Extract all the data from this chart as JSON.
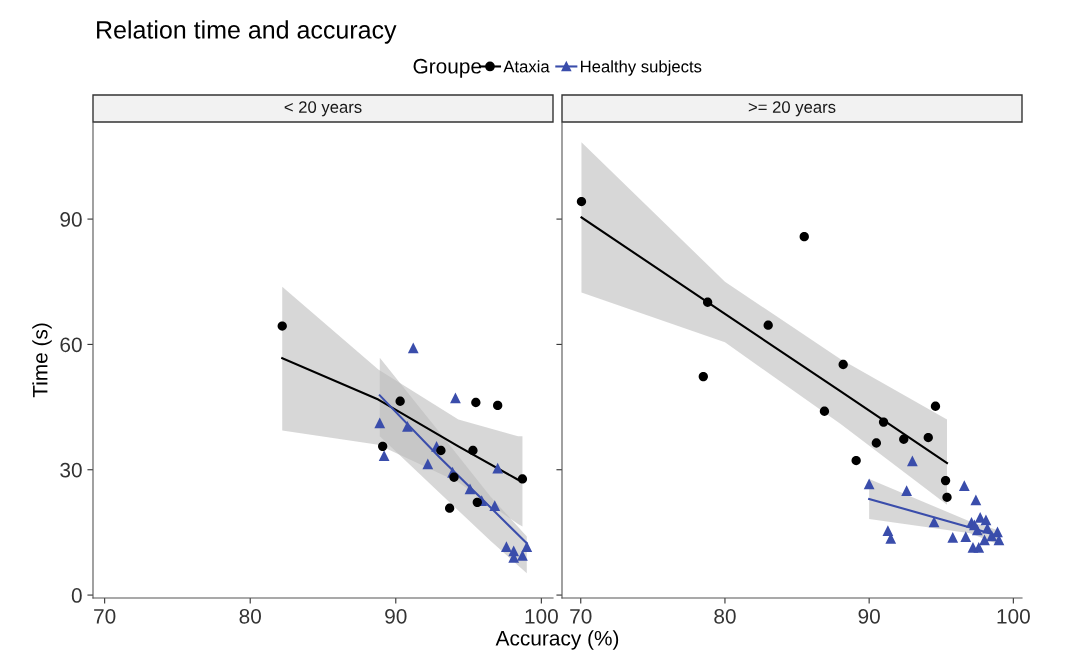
{
  "chart_data": [
    {
      "type": "scatter",
      "title": "Relation time and accuracy",
      "subtitle": "< 20 years",
      "xlabel": "Accuracy (%)",
      "ylabel": "Time (s)",
      "legend_title": "Groupe",
      "legend": "top",
      "grid": false,
      "xlim": [
        69.2,
        100.8
      ],
      "xticks": [
        70,
        80,
        90,
        100
      ],
      "ylim": [
        -0.7,
        113
      ],
      "yticks": [
        0,
        30,
        60,
        90
      ],
      "series": [
        {
          "name": "Ataxia",
          "color": "#000000",
          "marker": "circle",
          "x": [
            82.2,
            90.3,
            89.1,
            93.1,
            95.3,
            95.5,
            97.0,
            94.0,
            93.7,
            95.6,
            98.7
          ],
          "values": [
            64.4,
            46.4,
            35.6,
            34.6,
            34.6,
            46.1,
            45.4,
            28.2,
            20.8,
            22.2,
            27.8
          ]
        },
        {
          "name": "Healthy subjects",
          "color": "#3a4dab",
          "marker": "triangle",
          "x": [
            91.2,
            94.1,
            88.9,
            90.8,
            89.2,
            92.2,
            92.8,
            93.9,
            95.1,
            95.9,
            96.8,
            97.0,
            97.6,
            98.1,
            98.1,
            98.7,
            99.0
          ],
          "values": [
            59.2,
            47.2,
            41.2,
            40.4,
            33.4,
            31.4,
            35.6,
            29.4,
            25.4,
            22.6,
            21.4,
            30.4,
            11.6,
            10.6,
            9.0,
            9.5,
            11.6
          ]
        },
        {
          "type": "line",
          "color": "#000000",
          "marker": "none",
          "x": [
            82.2,
            88.8,
            94.3,
            98.4,
            98.7
          ],
          "values": [
            56.7,
            46.8,
            35.6,
            27.6,
            27.8
          ],
          "lower": [
            39.4,
            36,
            27,
            17,
            16.4
          ],
          "upper": [
            73.8,
            54,
            42,
            38,
            38
          ]
        },
        {
          "type": "line",
          "color": "#3a4dab",
          "marker": "none",
          "x": [
            88.9,
            93,
            96.5,
            99.0
          ],
          "values": [
            47.8,
            33,
            21,
            12.4
          ],
          "lower": [
            38,
            24.5,
            13,
            5.2
          ],
          "upper": [
            56.8,
            39,
            23.6,
            14
          ]
        }
      ]
    },
    {
      "type": "scatter",
      "subtitle": ">= 20 years",
      "tick_labels": "x",
      "grid": false,
      "xlim": [
        68.7,
        100.6
      ],
      "xticks": [
        70,
        80,
        90,
        100
      ],
      "ylim": [
        -0.7,
        113
      ],
      "yticks": [
        0,
        30,
        60,
        90
      ],
      "series": [
        {
          "color": "#000000",
          "marker": "circle",
          "x": [
            70.05,
            85.5,
            78.8,
            83.0,
            78.5,
            86.9,
            88.2,
            94.6,
            91.0,
            94.1,
            92.4,
            90.5,
            89.1,
            95.3,
            95.4
          ],
          "values": [
            94.2,
            85.8,
            70.1,
            64.6,
            52.3,
            44.0,
            55.2,
            45.2,
            41.4,
            37.7,
            37.3,
            36.4,
            32.2,
            27.4,
            23.4
          ]
        },
        {
          "color": "#3a4dab",
          "marker": "triangle",
          "x": [
            90.0,
            93.0,
            92.6,
            96.6,
            97.4,
            91.3,
            91.5,
            94.5,
            95.8,
            96.7,
            97.1,
            97.7,
            98.1,
            97.5,
            98.2,
            97.2,
            97.6,
            98.0,
            98.5,
            98.9,
            99.0,
            97.3
          ],
          "values": [
            26.6,
            32.1,
            25.0,
            26.2,
            22.8,
            15.4,
            13.6,
            17.5,
            13.8,
            14.0,
            17.4,
            18.6,
            18.0,
            15.6,
            16.0,
            11.4,
            11.4,
            13.2,
            14.2,
            15.1,
            13.2,
            16.8
          ]
        },
        {
          "type": "line",
          "color": "#000000",
          "marker": "none",
          "x": [
            70.05,
            80,
            88,
            95.4
          ],
          "values": [
            90.4,
            67.3,
            48.8,
            31.6
          ],
          "lower": [
            72.4,
            60.5,
            41,
            21.6
          ],
          "upper": [
            108.4,
            75,
            56.5,
            42
          ]
        },
        {
          "type": "line",
          "color": "#3a4dab",
          "marker": "none",
          "x": [
            90.0,
            97,
            98.9
          ],
          "values": [
            23.0,
            16.2,
            14.2
          ],
          "lower": [
            18.2,
            14.8,
            12.2
          ],
          "upper": [
            27.8,
            17.6,
            15.6
          ]
        }
      ]
    }
  ]
}
